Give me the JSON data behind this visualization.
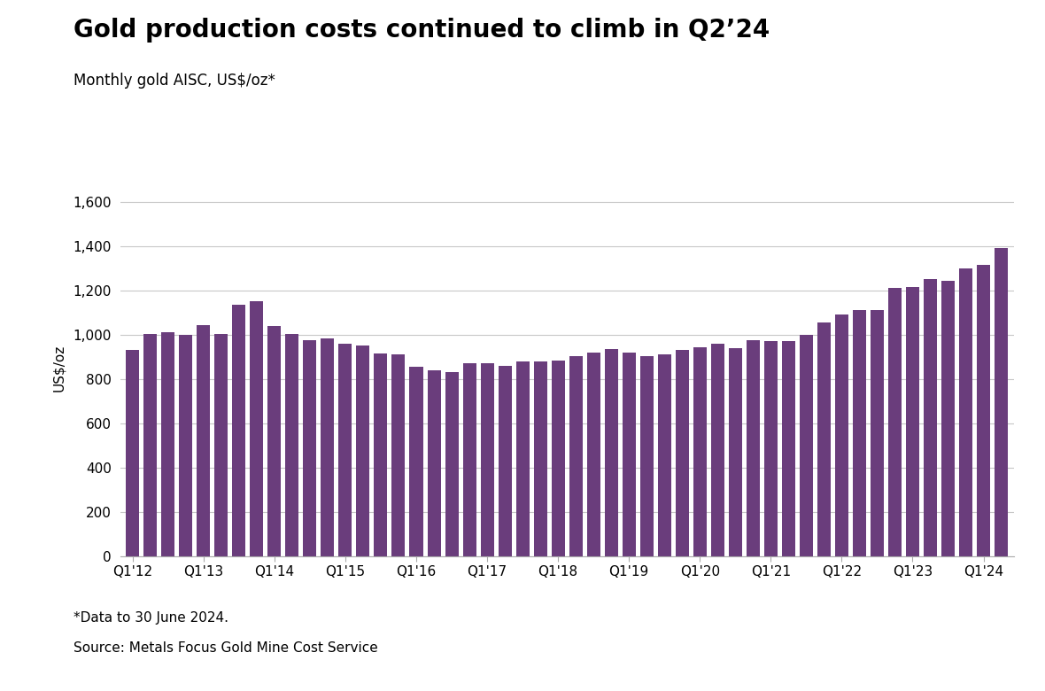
{
  "title": "Gold production costs continued to climb in Q2’24",
  "subtitle": "Monthly gold AISC, US$/oz*",
  "ylabel": "US$/oz",
  "footnote1": "*Data to 30 June 2024.",
  "footnote2": "Source: Metals Focus Gold Mine Cost Service",
  "bar_color": "#6a3d7c",
  "background_color": "#ffffff",
  "ylim": [
    0,
    1700
  ],
  "yticks": [
    0,
    200,
    400,
    600,
    800,
    1000,
    1200,
    1400,
    1600
  ],
  "xtick_labels": [
    "Q1'12",
    "",
    "",
    "",
    "Q1'13",
    "",
    "",
    "",
    "Q1'14",
    "",
    "",
    "",
    "Q1'15",
    "",
    "",
    "",
    "Q1'16",
    "",
    "",
    "",
    "Q1'17",
    "",
    "",
    "",
    "Q1'18",
    "",
    "",
    "",
    "Q1'19",
    "",
    "",
    "",
    "Q1'20",
    "",
    "",
    "",
    "Q1'21",
    "",
    "",
    "",
    "Q1'22",
    "",
    "",
    "",
    "Q1'23",
    "",
    "",
    "",
    "Q1'24",
    ""
  ],
  "values": [
    930,
    1005,
    1010,
    1000,
    1045,
    1005,
    1135,
    1150,
    1040,
    1005,
    975,
    985,
    960,
    950,
    915,
    910,
    855,
    840,
    830,
    870,
    870,
    860,
    880,
    880,
    885,
    905,
    920,
    935,
    920,
    905,
    910,
    930,
    945,
    960,
    940,
    975,
    970,
    970,
    1000,
    1055,
    1090,
    1110,
    1110,
    1210,
    1215,
    1250,
    1245,
    1300,
    1315,
    1390
  ]
}
